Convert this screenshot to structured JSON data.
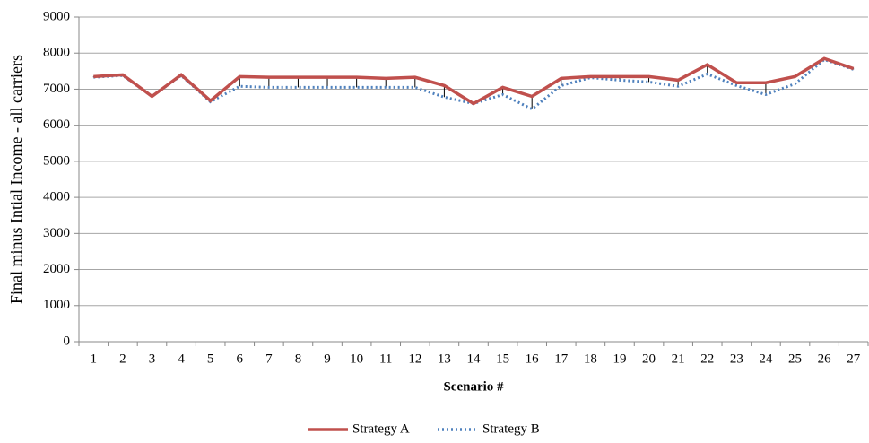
{
  "chart_data": {
    "type": "line",
    "y_label": "Final minus Intial Income - all carriers",
    "x_label": "Scenario #",
    "categories": [
      "1",
      "2",
      "3",
      "4",
      "5",
      "6",
      "7",
      "8",
      "9",
      "10",
      "11",
      "12",
      "13",
      "14",
      "15",
      "16",
      "17",
      "18",
      "19",
      "20",
      "21",
      "22",
      "23",
      "24",
      "25",
      "26",
      "27"
    ],
    "series": [
      {
        "name": "Strategy A",
        "color": "#c0504d",
        "style": "solid",
        "values": [
          7350,
          7400,
          6800,
          7400,
          6680,
          7350,
          7330,
          7330,
          7330,
          7330,
          7300,
          7330,
          7100,
          6600,
          7050,
          6800,
          7300,
          7350,
          7350,
          7350,
          7250,
          7680,
          7180,
          7180,
          7350,
          7850,
          7570
        ]
      },
      {
        "name": "Strategy B",
        "color": "#4f81bd",
        "style": "dotted",
        "values": [
          7330,
          7380,
          6800,
          7380,
          6650,
          7080,
          7050,
          7050,
          7050,
          7050,
          7050,
          7050,
          6780,
          6600,
          6850,
          6450,
          7100,
          7320,
          7250,
          7200,
          7080,
          7420,
          7100,
          6850,
          7150,
          7820,
          7550
        ]
      }
    ],
    "hi_low_lines": true,
    "ylim": [
      0,
      9000
    ],
    "yticks": [
      0,
      1000,
      2000,
      3000,
      4000,
      5000,
      6000,
      7000,
      8000,
      9000
    ],
    "grid": true,
    "legend": "bottom"
  }
}
